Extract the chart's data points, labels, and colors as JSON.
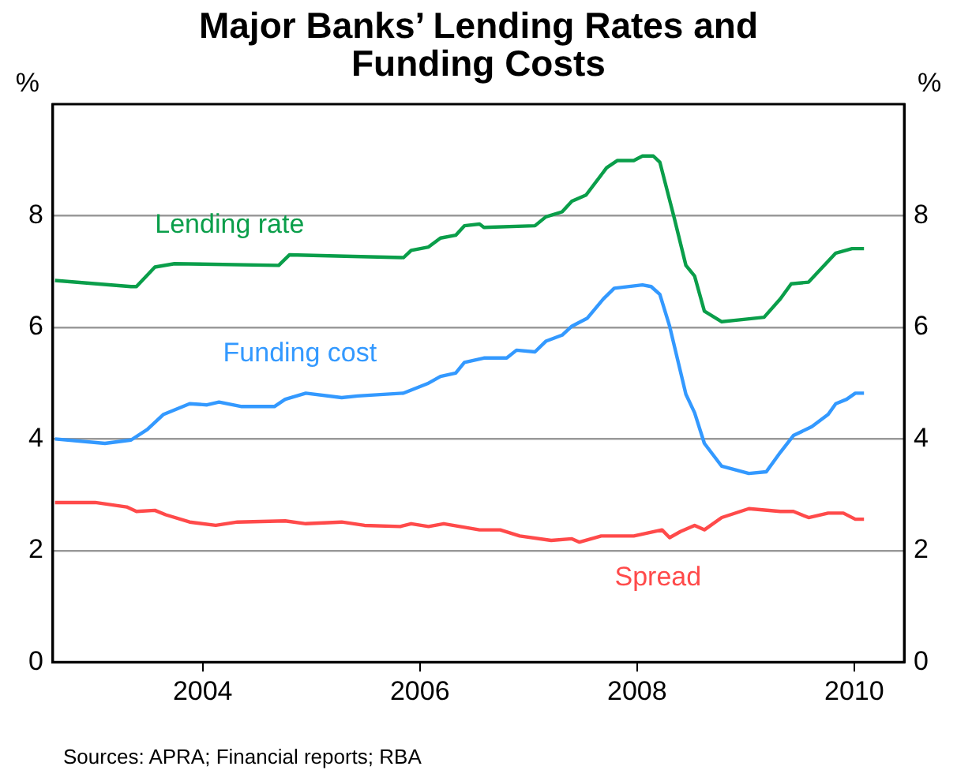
{
  "chart_data": {
    "type": "line",
    "title": "Major Banks’ Lending Rates and Funding Costs",
    "ylabel": "%",
    "y2label": "%",
    "xlim": [
      2002.62,
      2010.46
    ],
    "xticks": [
      2004,
      2006,
      2008,
      2010
    ],
    "ylim": [
      0,
      10
    ],
    "yticks": [
      0,
      2,
      4,
      6,
      8
    ],
    "y2lim": [
      0,
      10
    ],
    "y2ticks": [
      0,
      2,
      4,
      6,
      8
    ],
    "grid": "y",
    "legend": false,
    "marker": "none",
    "line_style": "solid",
    "annotations": [
      "Sources: APRA; Financial reports; RBA"
    ],
    "series": [
      {
        "name": "Lending rate",
        "color": "#0a9e4a",
        "x": [
          2002.64,
          2003.34,
          2003.39,
          2003.56,
          2003.74,
          2004.7,
          2004.8,
          2005.38,
          2005.85,
          2005.92,
          2006.08,
          2006.19,
          2006.33,
          2006.41,
          2006.55,
          2006.59,
          2007.06,
          2007.16,
          2007.31,
          2007.4,
          2007.53,
          2007.72,
          2007.82,
          2007.97,
          2008.05,
          2008.15,
          2008.21,
          2008.34,
          2008.45,
          2008.53,
          2008.62,
          2008.78,
          2008.93,
          2009.17,
          2009.32,
          2009.42,
          2009.58,
          2009.83,
          2009.98,
          2010.09
        ],
        "values": [
          6.84,
          6.73,
          6.73,
          7.08,
          7.14,
          7.11,
          7.3,
          7.27,
          7.25,
          7.38,
          7.44,
          7.6,
          7.65,
          7.82,
          7.85,
          7.79,
          7.82,
          7.98,
          8.07,
          8.26,
          8.37,
          8.86,
          8.99,
          8.99,
          9.07,
          9.07,
          8.96,
          7.98,
          7.11,
          6.92,
          6.29,
          6.1,
          6.13,
          6.18,
          6.51,
          6.78,
          6.81,
          7.33,
          7.41,
          7.41
        ]
      },
      {
        "name": "Funding cost",
        "color": "#3399ff",
        "x": [
          2002.64,
          2003.1,
          2003.34,
          2003.49,
          2003.64,
          2003.88,
          2004.04,
          2004.15,
          2004.36,
          2004.66,
          2004.76,
          2004.95,
          2005.28,
          2005.43,
          2005.85,
          2006.07,
          2006.19,
          2006.33,
          2006.41,
          2006.59,
          2006.8,
          2006.89,
          2007.06,
          2007.16,
          2007.31,
          2007.4,
          2007.54,
          2007.69,
          2007.79,
          2008.05,
          2008.13,
          2008.21,
          2008.3,
          2008.45,
          2008.53,
          2008.62,
          2008.78,
          2009.03,
          2009.19,
          2009.32,
          2009.44,
          2009.61,
          2009.76,
          2009.83,
          2009.93,
          2010.01,
          2010.09
        ],
        "values": [
          4.0,
          3.92,
          3.98,
          4.17,
          4.44,
          4.63,
          4.61,
          4.66,
          4.58,
          4.58,
          4.71,
          4.82,
          4.74,
          4.77,
          4.82,
          4.99,
          5.12,
          5.18,
          5.37,
          5.45,
          5.45,
          5.59,
          5.56,
          5.75,
          5.86,
          6.02,
          6.16,
          6.51,
          6.7,
          6.76,
          6.73,
          6.59,
          6.02,
          4.8,
          4.47,
          3.92,
          3.51,
          3.38,
          3.41,
          3.76,
          4.06,
          4.22,
          4.44,
          4.63,
          4.71,
          4.82,
          4.82
        ]
      },
      {
        "name": "Spread",
        "color": "#ff4a4a",
        "x": [
          2002.64,
          2003.01,
          2003.3,
          2003.39,
          2003.56,
          2003.66,
          2003.88,
          2004.12,
          2004.32,
          2004.76,
          2004.95,
          2005.28,
          2005.49,
          2005.82,
          2005.92,
          2006.08,
          2006.22,
          2006.55,
          2006.74,
          2006.92,
          2007.21,
          2007.4,
          2007.47,
          2007.67,
          2007.97,
          2008.23,
          2008.3,
          2008.4,
          2008.53,
          2008.62,
          2008.78,
          2009.03,
          2009.32,
          2009.44,
          2009.58,
          2009.76,
          2009.9,
          2010.01,
          2010.09
        ],
        "values": [
          2.86,
          2.86,
          2.78,
          2.7,
          2.72,
          2.64,
          2.51,
          2.45,
          2.51,
          2.53,
          2.48,
          2.51,
          2.45,
          2.43,
          2.48,
          2.43,
          2.48,
          2.37,
          2.37,
          2.26,
          2.18,
          2.21,
          2.15,
          2.26,
          2.26,
          2.37,
          2.23,
          2.34,
          2.45,
          2.37,
          2.59,
          2.75,
          2.7,
          2.7,
          2.59,
          2.67,
          2.67,
          2.56,
          2.56
        ]
      }
    ]
  }
}
